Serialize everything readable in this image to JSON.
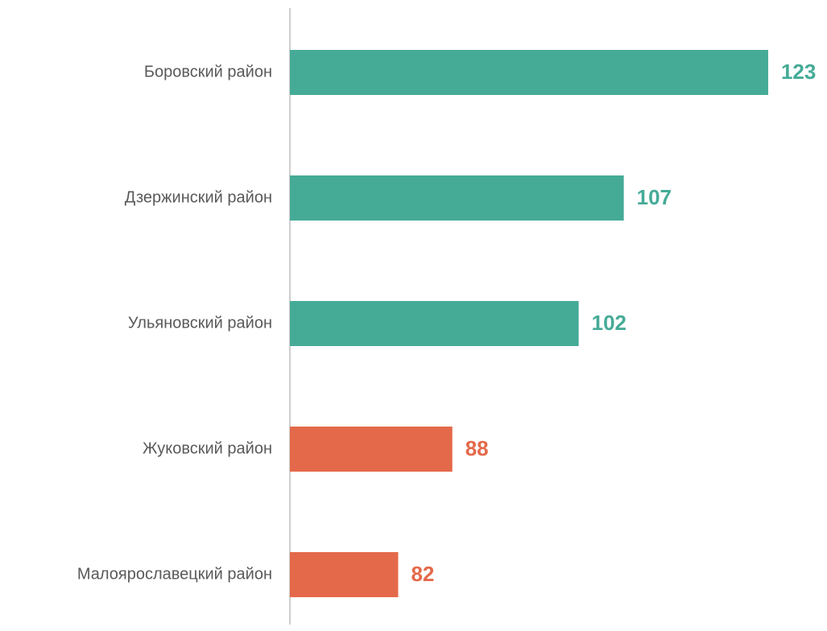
{
  "chart_data": {
    "type": "bar",
    "orientation": "horizontal",
    "categories": [
      "Боровский район",
      "Дзержинский район",
      "Ульяновский район",
      "Жуковский район",
      "Малоярославецкий район"
    ],
    "values": [
      123,
      107,
      102,
      88,
      82
    ],
    "colors": [
      "#45ab97",
      "#45ab97",
      "#45ab97",
      "#e4694a",
      "#e4694a"
    ],
    "xlim": [
      70,
      128
    ]
  }
}
